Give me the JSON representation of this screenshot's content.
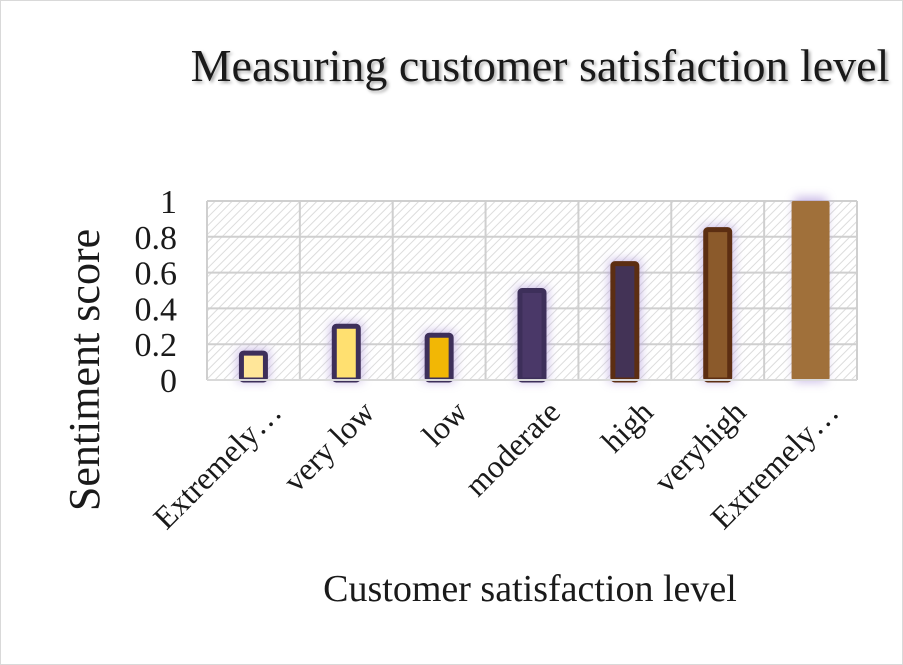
{
  "chart_data": {
    "type": "bar",
    "title": "Measuring customer satisfaction level",
    "xlabel": "Customer satisfaction level",
    "ylabel": "Sentiment score",
    "categories": [
      "Extremely…",
      "very low",
      "low",
      "moderate",
      "high",
      "veryhigh",
      "Extremely…"
    ],
    "values": [
      0.15,
      0.3,
      0.25,
      0.5,
      0.65,
      0.84,
      1.0
    ],
    "ylim": [
      0,
      1
    ],
    "yticks": [
      "0",
      "0.2",
      "0.4",
      "0.6",
      "0.8",
      "1"
    ],
    "grid": true,
    "legend": "none",
    "bar_fills": [
      "#ffe699",
      "#ffe070",
      "#f2b705",
      "#4a3868",
      "#433356",
      "#8b5a2b",
      "#a0703a"
    ],
    "bar_borders": [
      "#3d2f5a",
      "#3d2f5a",
      "#3d2f5a",
      "#3d2f5a",
      "#5c2e12",
      "#5c2e12",
      "#a0703a"
    ],
    "grid_color": "#cfcfcf",
    "glow_color": "#b39ddb"
  }
}
